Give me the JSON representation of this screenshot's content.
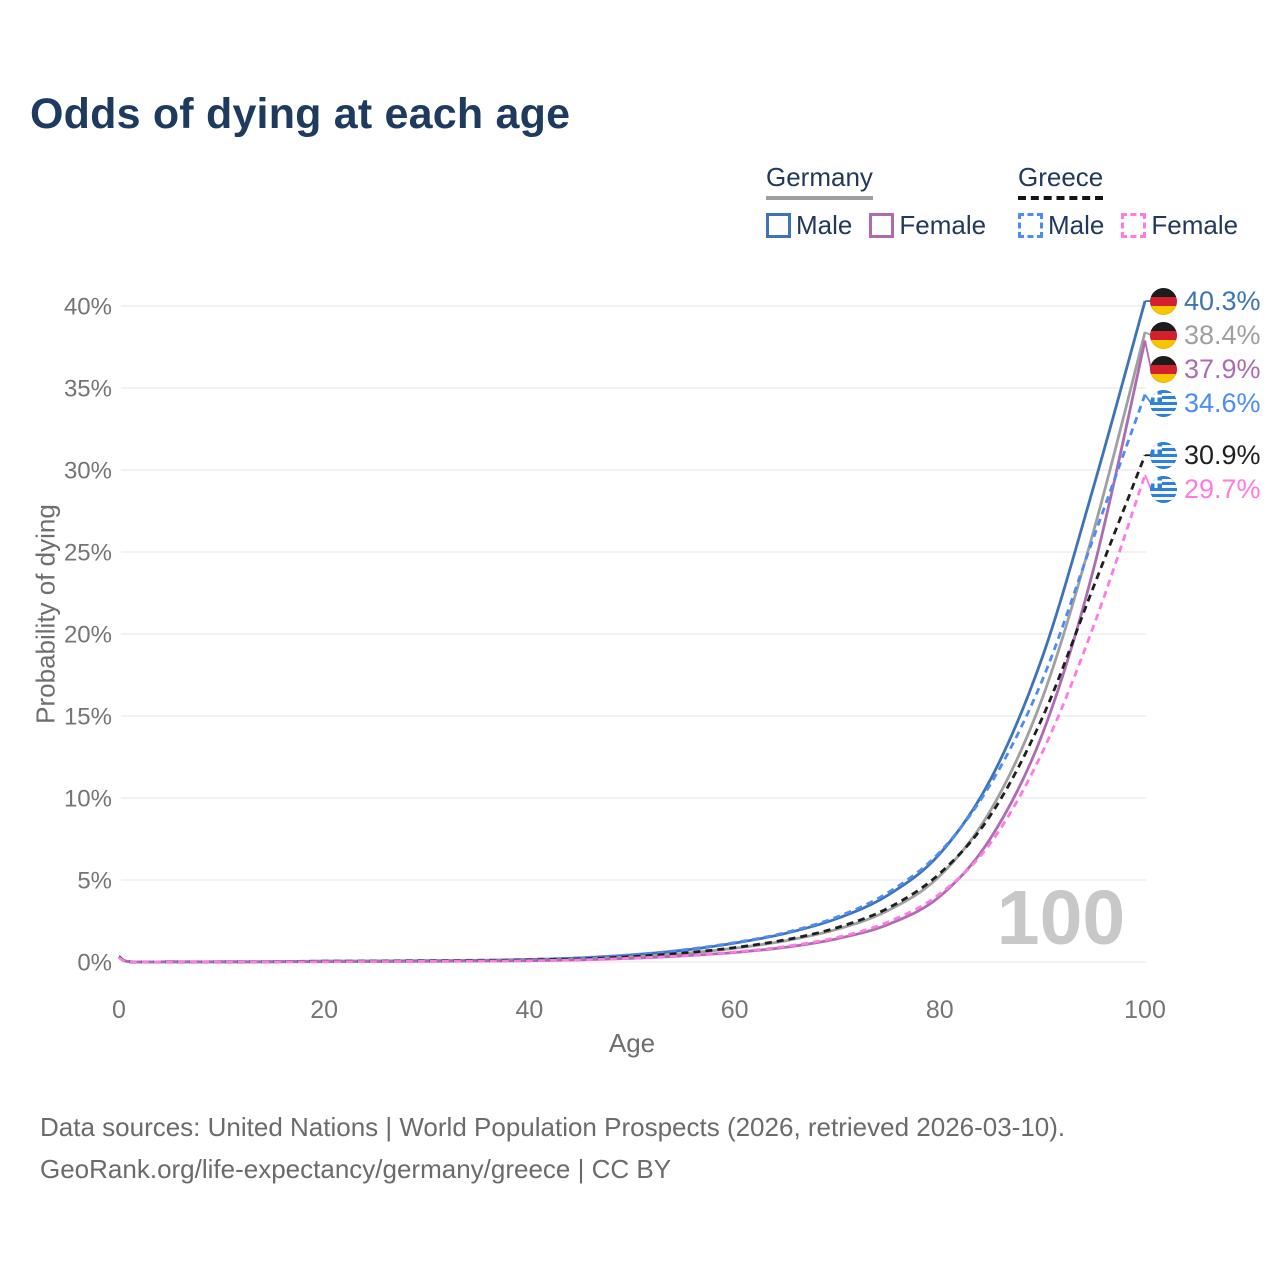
{
  "title": "Odds of dying at each age",
  "legend": {
    "germany": {
      "label": "Germany",
      "male": "Male",
      "female": "Female"
    },
    "greece": {
      "label": "Greece",
      "male": "Male",
      "female": "Female"
    }
  },
  "chart_data": {
    "type": "line",
    "title": "Odds of dying at each age",
    "xlabel": "Age",
    "ylabel": "Probability of dying",
    "xlim": [
      0,
      100
    ],
    "ylim": [
      0,
      40.5
    ],
    "xticks": [
      0,
      20,
      40,
      60,
      80,
      100
    ],
    "yticks": [
      0,
      5,
      10,
      15,
      20,
      25,
      30,
      35,
      40
    ],
    "ytick_suffix": "%",
    "grid": "horizontal",
    "legend_position": "top-right",
    "watermark": "100",
    "x": [
      0,
      1,
      5,
      10,
      15,
      20,
      25,
      30,
      35,
      40,
      45,
      50,
      55,
      60,
      65,
      70,
      75,
      80,
      85,
      90,
      95,
      100
    ],
    "series": [
      {
        "name": "Germany Male",
        "country": "germany",
        "sex": "male",
        "line_style": "solid",
        "color": "#3e74b5",
        "end_value": 40.3,
        "end_label": "40.3%",
        "values": [
          0.35,
          0.02,
          0.01,
          0.01,
          0.02,
          0.05,
          0.06,
          0.08,
          0.1,
          0.15,
          0.25,
          0.43,
          0.72,
          1.15,
          1.75,
          2.65,
          4.1,
          6.6,
          11.2,
          18.6,
          29.0,
          40.3
        ]
      },
      {
        "name": "Germany (both sexes)",
        "country": "germany",
        "sex": "both",
        "line_style": "solid",
        "color": "#a0a0a0",
        "end_value": 38.4,
        "end_label": "38.4%",
        "values": [
          0.31,
          0.02,
          0.01,
          0.01,
          0.02,
          0.04,
          0.05,
          0.06,
          0.08,
          0.11,
          0.18,
          0.31,
          0.52,
          0.84,
          1.3,
          2.0,
          3.15,
          5.25,
          9.3,
          16.1,
          26.3,
          38.4
        ]
      },
      {
        "name": "Germany Female",
        "country": "germany",
        "sex": "female",
        "line_style": "solid",
        "color": "#ad6cb2",
        "end_value": 37.9,
        "end_label": "37.9%",
        "values": [
          0.29,
          0.02,
          0.01,
          0.01,
          0.01,
          0.02,
          0.03,
          0.04,
          0.06,
          0.08,
          0.13,
          0.22,
          0.37,
          0.58,
          0.9,
          1.42,
          2.3,
          4.0,
          7.6,
          13.9,
          24.0,
          37.9
        ]
      },
      {
        "name": "Greece Male",
        "country": "greece",
        "sex": "male",
        "line_style": "dashed",
        "color": "#4d8cf5",
        "end_value": 34.6,
        "end_label": "34.6%",
        "values": [
          0.33,
          0.02,
          0.01,
          0.01,
          0.02,
          0.06,
          0.07,
          0.09,
          0.11,
          0.16,
          0.26,
          0.44,
          0.74,
          1.18,
          1.8,
          2.75,
          4.25,
          6.7,
          10.9,
          17.2,
          25.9,
          34.6
        ]
      },
      {
        "name": "Greece (both sexes)",
        "country": "greece",
        "sex": "both",
        "line_style": "dashed",
        "color": "#1f1f1f",
        "end_value": 30.9,
        "end_label": "30.9%",
        "values": [
          0.3,
          0.02,
          0.01,
          0.01,
          0.02,
          0.04,
          0.05,
          0.06,
          0.08,
          0.12,
          0.19,
          0.33,
          0.55,
          0.88,
          1.36,
          2.1,
          3.3,
          5.4,
          9.0,
          14.9,
          22.9,
          30.9
        ]
      },
      {
        "name": "Greece Female",
        "country": "greece",
        "sex": "female",
        "line_style": "dashed",
        "color": "#ff7ae1",
        "end_value": 29.7,
        "end_label": "29.7%",
        "values": [
          0.27,
          0.02,
          0.01,
          0.01,
          0.01,
          0.02,
          0.03,
          0.04,
          0.05,
          0.08,
          0.13,
          0.23,
          0.38,
          0.61,
          0.95,
          1.5,
          2.45,
          4.15,
          7.3,
          12.8,
          20.5,
          29.7
        ]
      }
    ]
  },
  "footer": {
    "line1": "Data sources: United Nations | World Population Prospects (2026, retrieved 2026-03-10).",
    "line2": "GeoRank.org/life-expectancy/germany/greece | CC BY"
  }
}
